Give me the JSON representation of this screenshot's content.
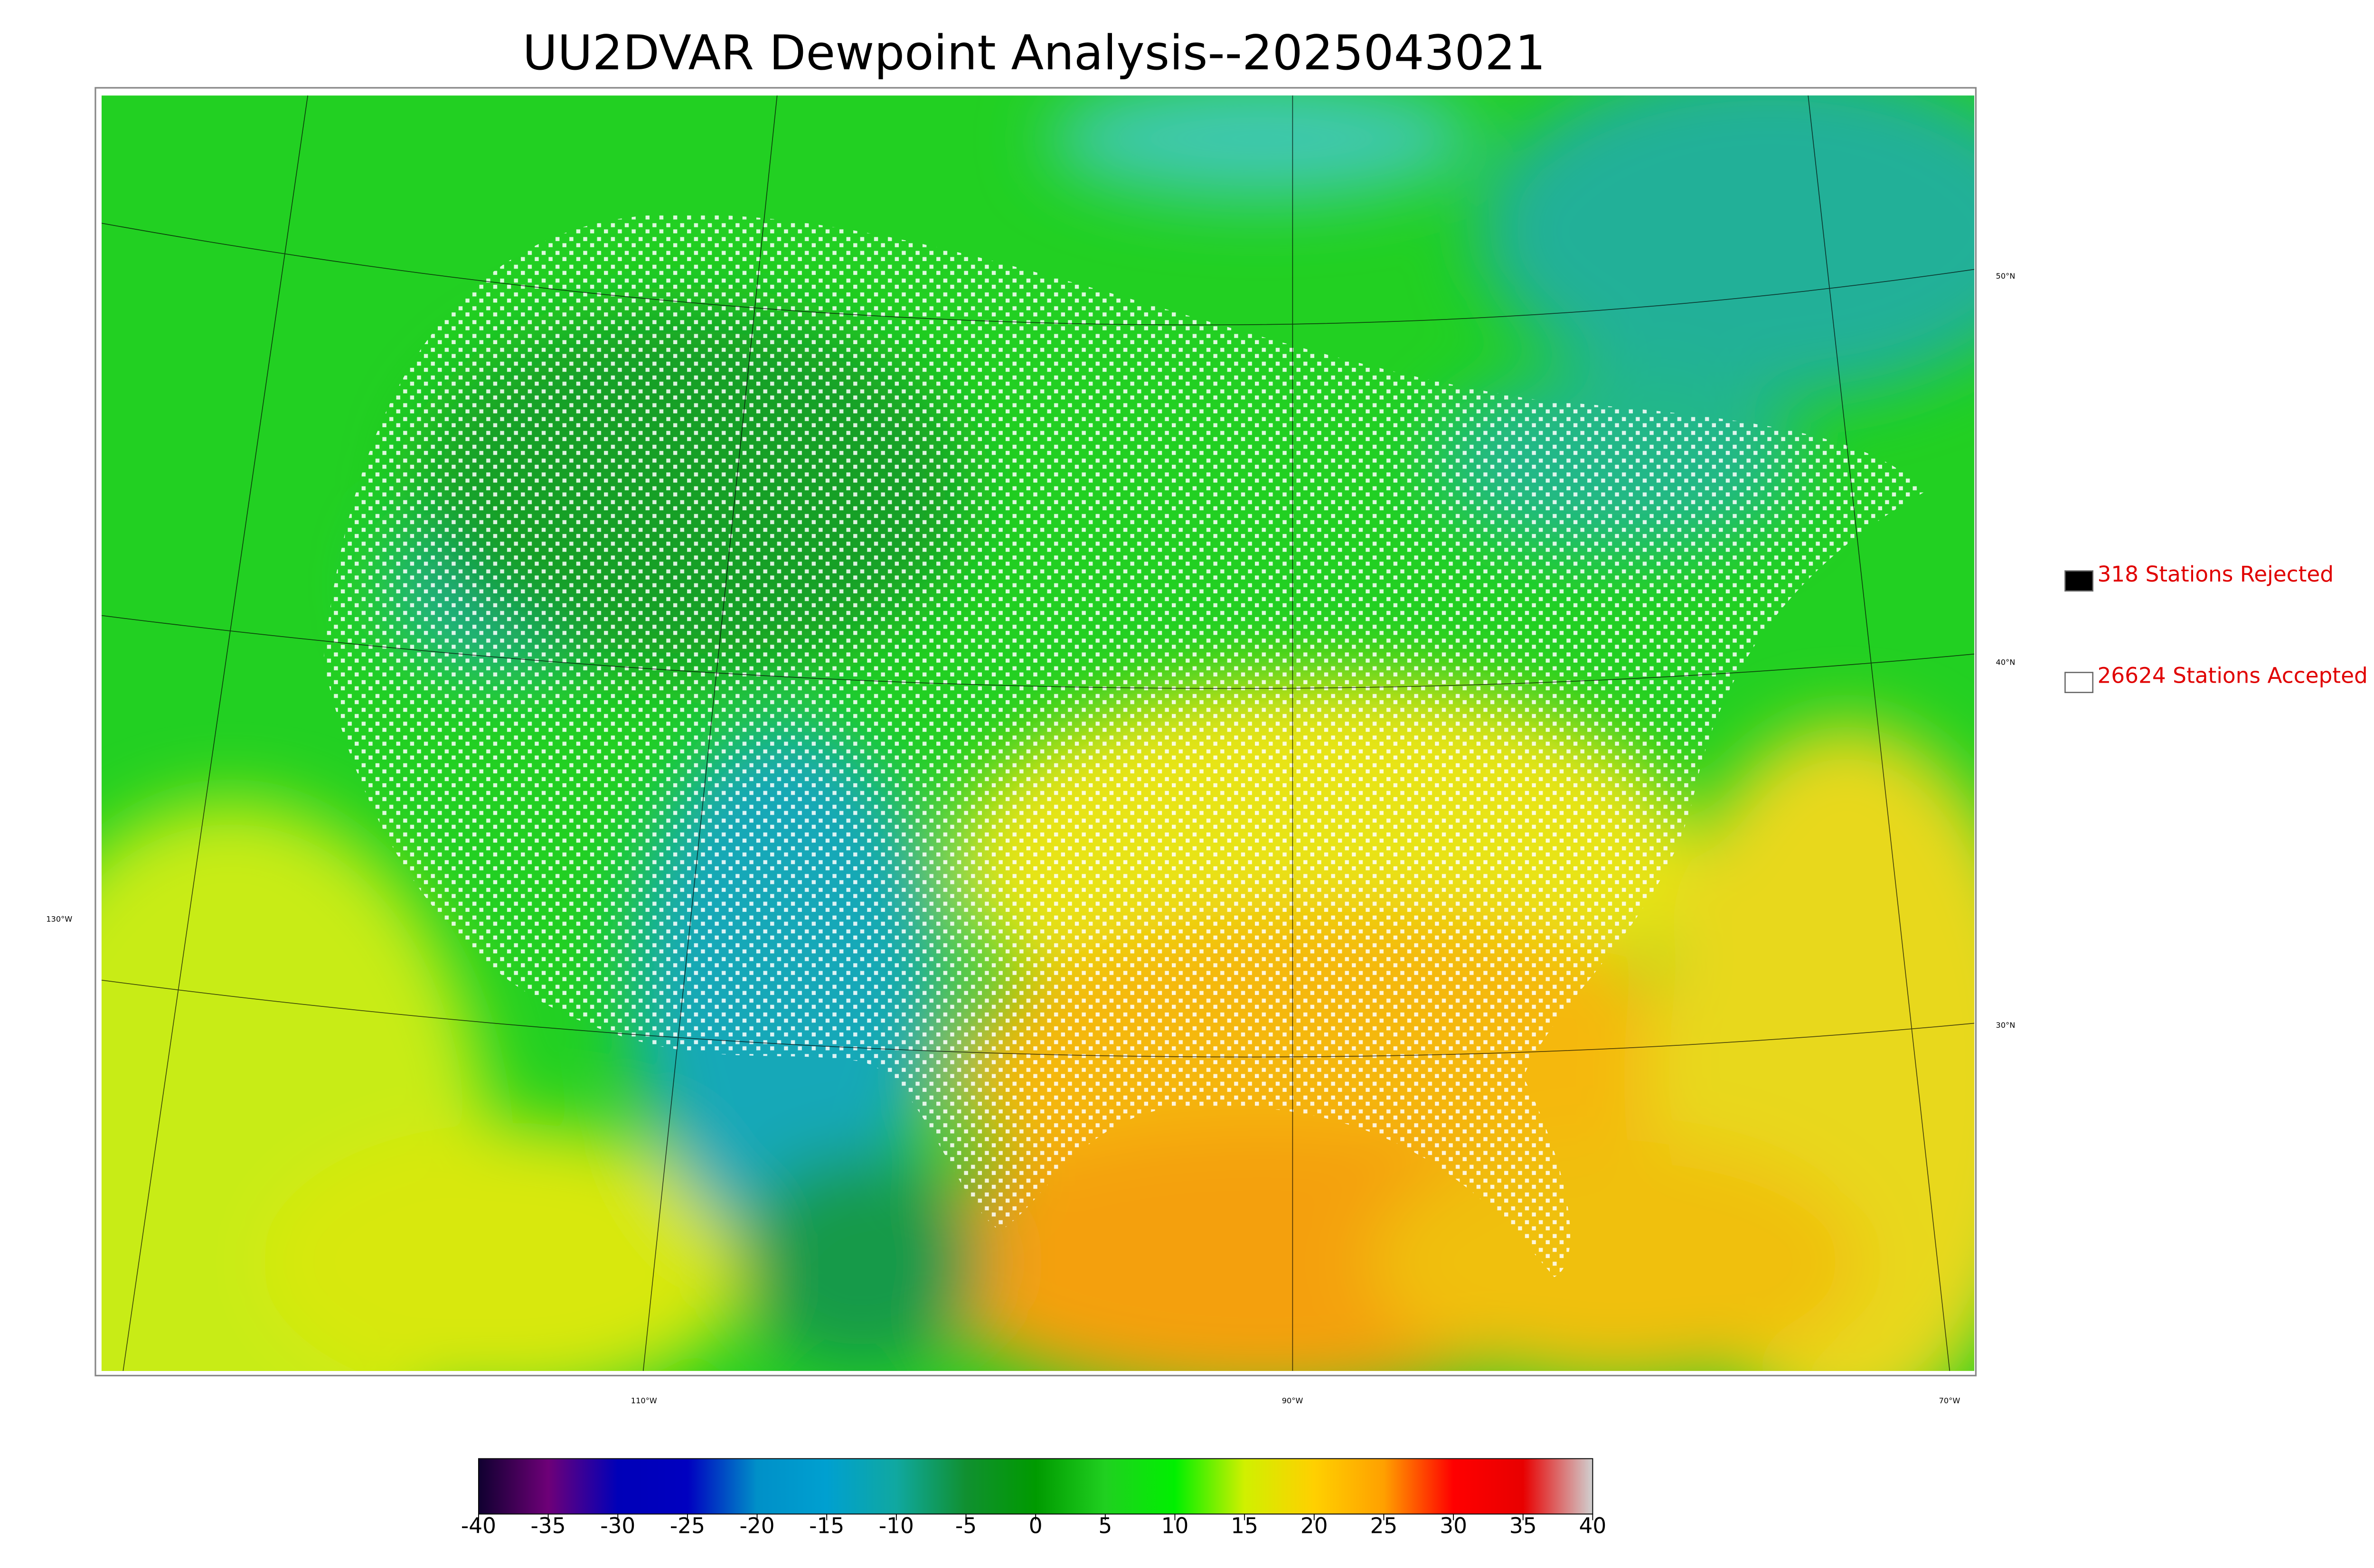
{
  "title": "UU2DVAR Dewpoint Analysis--2025043021",
  "map": {
    "lat_labels": [
      "50°N",
      "40°N",
      "30°N"
    ],
    "lon_labels": [
      "130°W",
      "110°W",
      "90°W",
      "70°W"
    ]
  },
  "legend": [
    {
      "label": "318 Stations Rejected",
      "color": "#000000"
    },
    {
      "label": "26624 Stations Accepted",
      "color": "#ffffff"
    }
  ],
  "colorbar": {
    "lim": [
      -40,
      40
    ],
    "ticks": [
      -40,
      -35,
      -30,
      -25,
      -20,
      -15,
      -10,
      -5,
      0,
      5,
      10,
      15,
      20,
      25,
      30,
      35,
      40
    ],
    "colors": [
      "#100030",
      "#6e0078",
      "#0000b8",
      "#0000c0",
      "#0090c8",
      "#00a0d0",
      "#10a8a0",
      "#109030",
      "#009a00",
      "#20d020",
      "#00f000",
      "#d0f000",
      "#ffd000",
      "#ffa000",
      "#ff0000",
      "#e80000",
      "#d0d0d0"
    ]
  }
}
